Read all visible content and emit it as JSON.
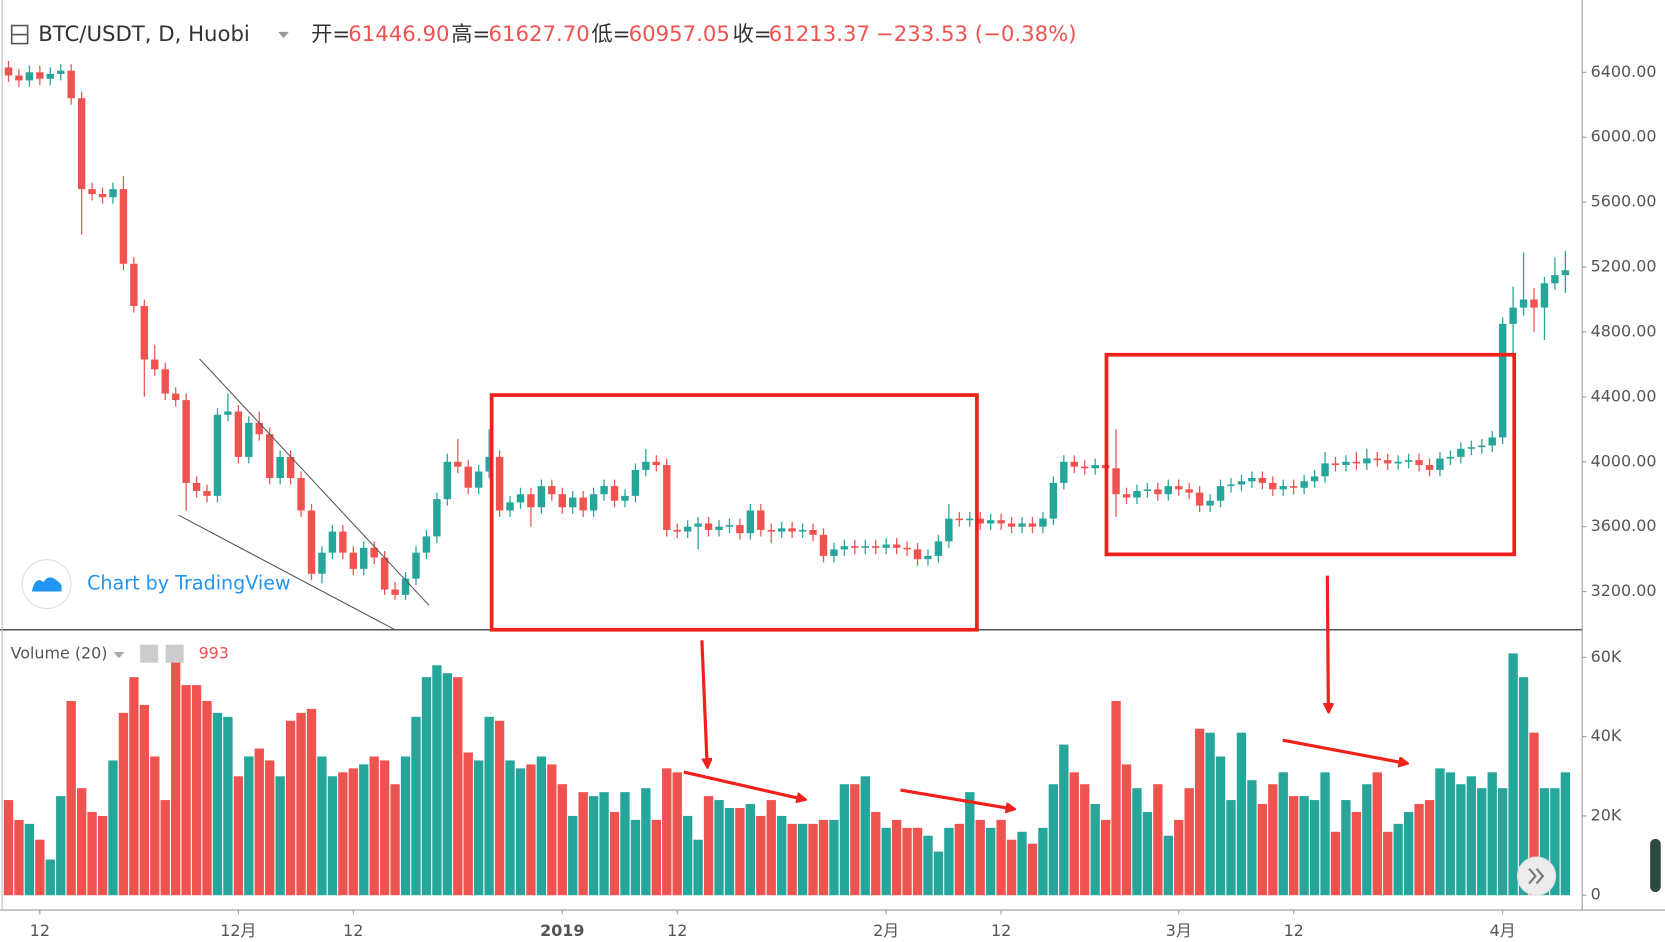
{
  "chart_data": {
    "type": "candlestick",
    "title": "BTC/USDT, D, Huobi",
    "ohlc_legend": [
      {
        "name": "开=",
        "value": "61446.90"
      },
      {
        "name": "高=",
        "value": "61627.70"
      },
      {
        "name": "低=",
        "value": "60957.05"
      },
      {
        "name": "收=",
        "value": "61213.37"
      }
    ],
    "change": "−233.53 (−0.38%)",
    "volume_title": "Volume (20)",
    "volume_last": "993",
    "watermark": "Chart by TradingView",
    "up_color": "#26a69a",
    "down_color": "#ef5350",
    "grid": false,
    "ylim": [
      2965,
      6845
    ],
    "yticks": [
      {
        "value": 3200,
        "label": "3200.00"
      },
      {
        "value": 3600,
        "label": "3600.00"
      },
      {
        "value": 4000,
        "label": "4000.00"
      },
      {
        "value": 4400,
        "label": "4400.00"
      },
      {
        "value": 4800,
        "label": "4800.00"
      },
      {
        "value": 5200,
        "label": "5200.00"
      },
      {
        "value": 5600,
        "label": "5600.00"
      },
      {
        "value": 6000,
        "label": "6000.00"
      },
      {
        "value": 6400,
        "label": "6400.00"
      }
    ],
    "vlim": [
      -3750,
      65625
    ],
    "vticks": [
      0,
      {
        "value": 20000,
        "label": "20K"
      },
      {
        "value": 40000,
        "label": "40K"
      },
      {
        "value": 60000,
        "label": "60K"
      }
    ],
    "categories": [
      null,
      null,
      null,
      "12",
      null,
      null,
      null,
      null,
      null,
      null,
      null,
      null,
      null,
      null,
      null,
      null,
      null,
      null,
      null,
      null,
      null,
      null,
      "12月",
      null,
      null,
      null,
      null,
      null,
      null,
      null,
      null,
      null,
      null,
      "12",
      null,
      null,
      null,
      null,
      null,
      null,
      null,
      null,
      null,
      null,
      null,
      null,
      null,
      null,
      null,
      null,
      null,
      null,
      null,
      "2019",
      null,
      null,
      null,
      null,
      null,
      null,
      null,
      null,
      null,
      null,
      "12",
      null,
      null,
      null,
      null,
      null,
      null,
      null,
      null,
      null,
      null,
      null,
      null,
      null,
      null,
      null,
      null,
      null,
      null,
      null,
      "2月",
      null,
      null,
      null,
      null,
      null,
      null,
      null,
      null,
      null,
      null,
      "12",
      null,
      null,
      null,
      null,
      null,
      null,
      null,
      null,
      null,
      null,
      null,
      null,
      null,
      null,
      null,
      null,
      "3月",
      null,
      null,
      null,
      null,
      null,
      null,
      null,
      null,
      null,
      null,
      "12",
      null,
      null,
      null,
      null,
      null,
      null,
      null,
      null,
      null,
      null,
      null,
      null,
      null,
      null,
      null,
      null,
      null,
      null,
      null,
      "4月",
      null,
      null,
      null,
      null,
      null,
      null
    ],
    "open": [
      6430,
      6380,
      6350,
      6400,
      6360,
      6390,
      6410,
      6240,
      5680,
      5650,
      5630,
      5680,
      5220,
      4960,
      4630,
      4570,
      4420,
      4380,
      3870,
      3820,
      3790,
      4290,
      4310,
      4030,
      4240,
      4170,
      3900,
      4030,
      3900,
      3700,
      3310,
      3440,
      3570,
      3440,
      3340,
      3470,
      3410,
      3213,
      3180,
      3280,
      3440,
      3540,
      3770,
      4000,
      3970,
      3840,
      3940,
      4030,
      3700,
      3750,
      3800,
      3720,
      3850,
      3800,
      3720,
      3780,
      3700,
      3800,
      3850,
      3760,
      3790,
      3950,
      4000,
      3980,
      3580,
      3570,
      3600,
      3620,
      3580,
      3600,
      3610,
      3560,
      3700,
      3580,
      3570,
      3590,
      3570,
      3580,
      3550,
      3420,
      3460,
      3480,
      3470,
      3480,
      3470,
      3490,
      3470,
      3460,
      3400,
      3420,
      3510,
      3650,
      3640,
      3650,
      3620,
      3640,
      3620,
      3600,
      3620,
      3600,
      3650,
      3870,
      4000,
      3970,
      3960,
      3980,
      3960,
      3800,
      3780,
      3820,
      3830,
      3800,
      3850,
      3830,
      3810,
      3730,
      3760,
      3850,
      3860,
      3880,
      3900,
      3870,
      3830,
      3850,
      3840,
      3880,
      3910,
      3990,
      3980,
      4000,
      3990,
      4020,
      4010,
      3990,
      4000,
      4010,
      3980,
      3950,
      4020,
      4030,
      4080,
      4090,
      4100,
      4150,
      4850,
      4950,
      5000,
      4950,
      5100,
      5150
    ],
    "high": [
      6470,
      6420,
      6440,
      6440,
      6430,
      6450,
      6450,
      6280,
      5720,
      5690,
      5720,
      5760,
      5260,
      5000,
      4720,
      4610,
      4460,
      4420,
      3910,
      3860,
      4330,
      4420,
      4350,
      4280,
      4310,
      4210,
      4070,
      4070,
      3940,
      3740,
      3480,
      3610,
      3610,
      3480,
      3510,
      3510,
      3450,
      3260,
      3320,
      3480,
      3580,
      3810,
      4050,
      4140,
      4010,
      3980,
      4200,
      4070,
      3790,
      3840,
      3840,
      3890,
      3890,
      3840,
      3820,
      3820,
      3840,
      3890,
      3890,
      3830,
      3990,
      4080,
      4040,
      4020,
      3620,
      3640,
      3660,
      3660,
      3640,
      3650,
      3650,
      3740,
      3740,
      3620,
      3630,
      3630,
      3620,
      3620,
      3590,
      3500,
      3520,
      3520,
      3520,
      3520,
      3530,
      3530,
      3510,
      3500,
      3460,
      3550,
      3740,
      3690,
      3690,
      3690,
      3680,
      3680,
      3660,
      3660,
      3660,
      3690,
      3910,
      4040,
      4040,
      4010,
      4020,
      4020,
      4200,
      3840,
      3860,
      3870,
      3870,
      3890,
      3890,
      3870,
      3850,
      3800,
      3890,
      3900,
      3920,
      3940,
      3940,
      3910,
      3890,
      3890,
      3920,
      3950,
      4060,
      4030,
      4040,
      4060,
      4080,
      4060,
      4050,
      4040,
      4050,
      4050,
      4020,
      4060,
      4070,
      4120,
      4130,
      4140,
      4190,
      4890,
      5080,
      5290,
      5070,
      5140,
      5260,
      5300
    ],
    "low": [
      6340,
      6310,
      6310,
      6320,
      6320,
      6350,
      6200,
      5400,
      5610,
      5590,
      5590,
      5180,
      4920,
      4400,
      4530,
      4380,
      4340,
      3700,
      3780,
      3750,
      3750,
      4250,
      3990,
      3990,
      4130,
      3860,
      3860,
      3860,
      3660,
      3270,
      3250,
      3400,
      3400,
      3300,
      3300,
      3370,
      3180,
      3150,
      3150,
      3240,
      3400,
      3500,
      3730,
      3930,
      3800,
      3800,
      3900,
      3660,
      3660,
      3710,
      3600,
      3680,
      3760,
      3680,
      3680,
      3660,
      3660,
      3760,
      3720,
      3720,
      3750,
      3910,
      3940,
      3540,
      3530,
      3530,
      3460,
      3540,
      3540,
      3560,
      3520,
      3520,
      3540,
      3500,
      3530,
      3530,
      3530,
      3510,
      3380,
      3380,
      3420,
      3430,
      3430,
      3430,
      3430,
      3430,
      3420,
      3360,
      3360,
      3380,
      3470,
      3600,
      3600,
      3580,
      3580,
      3580,
      3560,
      3560,
      3560,
      3560,
      3610,
      3830,
      3930,
      3920,
      3920,
      3920,
      3660,
      3740,
      3740,
      3780,
      3760,
      3760,
      3790,
      3770,
      3690,
      3690,
      3720,
      3810,
      3820,
      3840,
      3830,
      3790,
      3790,
      3800,
      3800,
      3840,
      3870,
      3940,
      3940,
      3950,
      3950,
      3970,
      3950,
      3950,
      3960,
      3940,
      3910,
      3910,
      3980,
      3990,
      4040,
      4050,
      4060,
      4110,
      4650,
      4900,
      4800,
      4750,
      5060,
      5040
    ],
    "close": [
      6380,
      6350,
      6400,
      6360,
      6390,
      6410,
      6240,
      5680,
      5650,
      5630,
      5680,
      5220,
      4960,
      4630,
      4570,
      4420,
      4380,
      3870,
      3820,
      3790,
      4290,
      4310,
      4030,
      4240,
      4170,
      3900,
      4030,
      3900,
      3700,
      3310,
      3440,
      3570,
      3440,
      3340,
      3470,
      3410,
      3213,
      3180,
      3280,
      3440,
      3540,
      3770,
      4000,
      3970,
      3840,
      3940,
      4030,
      3700,
      3750,
      3800,
      3720,
      3850,
      3800,
      3720,
      3780,
      3700,
      3800,
      3850,
      3760,
      3790,
      3950,
      4000,
      3980,
      3580,
      3570,
      3600,
      3620,
      3580,
      3600,
      3610,
      3560,
      3700,
      3580,
      3570,
      3590,
      3570,
      3580,
      3550,
      3420,
      3460,
      3480,
      3470,
      3480,
      3470,
      3490,
      3470,
      3460,
      3400,
      3420,
      3510,
      3650,
      3640,
      3650,
      3620,
      3640,
      3620,
      3600,
      3620,
      3600,
      3650,
      3870,
      4000,
      3970,
      3960,
      3980,
      3960,
      3800,
      3780,
      3820,
      3830,
      3800,
      3850,
      3830,
      3810,
      3730,
      3760,
      3850,
      3860,
      3880,
      3900,
      3870,
      3830,
      3850,
      3840,
      3880,
      3910,
      3990,
      3980,
      4000,
      3990,
      4020,
      4010,
      3990,
      4000,
      4010,
      3980,
      3950,
      4020,
      4030,
      4080,
      4090,
      4100,
      4150,
      4850,
      4950,
      5000,
      4950,
      5100,
      5150,
      5180
    ],
    "volume": [
      24000,
      19000,
      18000,
      14000,
      9000,
      25000,
      49000,
      27000,
      21000,
      20000,
      34000,
      46000,
      55000,
      48000,
      35000,
      24000,
      62000,
      53000,
      53000,
      49000,
      46000,
      45000,
      30000,
      35000,
      37000,
      34000,
      30000,
      44000,
      46000,
      47000,
      35000,
      30000,
      31000,
      32000,
      33000,
      35000,
      34000,
      28000,
      35000,
      45000,
      55000,
      58000,
      56000,
      55000,
      36000,
      34000,
      45000,
      44000,
      34000,
      32000,
      33000,
      35000,
      33000,
      28000,
      20000,
      26000,
      25000,
      26000,
      21000,
      26000,
      19000,
      27000,
      19000,
      32000,
      31000,
      20000,
      14000,
      25000,
      24000,
      22000,
      22000,
      23000,
      20000,
      24000,
      20000,
      18000,
      18000,
      18000,
      19000,
      19000,
      28000,
      28000,
      30000,
      21000,
      17000,
      19000,
      17000,
      17000,
      15000,
      11000,
      17000,
      18000,
      26000,
      19000,
      17000,
      19000,
      14000,
      16000,
      13000,
      17000,
      28000,
      38000,
      31000,
      28000,
      23000,
      19000,
      49000,
      33000,
      27000,
      21000,
      28000,
      15000,
      19000,
      27000,
      42000,
      41000,
      35000,
      24000,
      41000,
      29000,
      23000,
      28000,
      31000,
      25000,
      25000,
      24000,
      31000,
      16000,
      24000,
      21000,
      28000,
      31000,
      16000,
      18000,
      21000,
      23000,
      24000,
      32000,
      31000,
      28000,
      30000,
      27000,
      31000,
      27000,
      61000,
      55000,
      41000,
      27000,
      27000,
      31000
    ]
  }
}
